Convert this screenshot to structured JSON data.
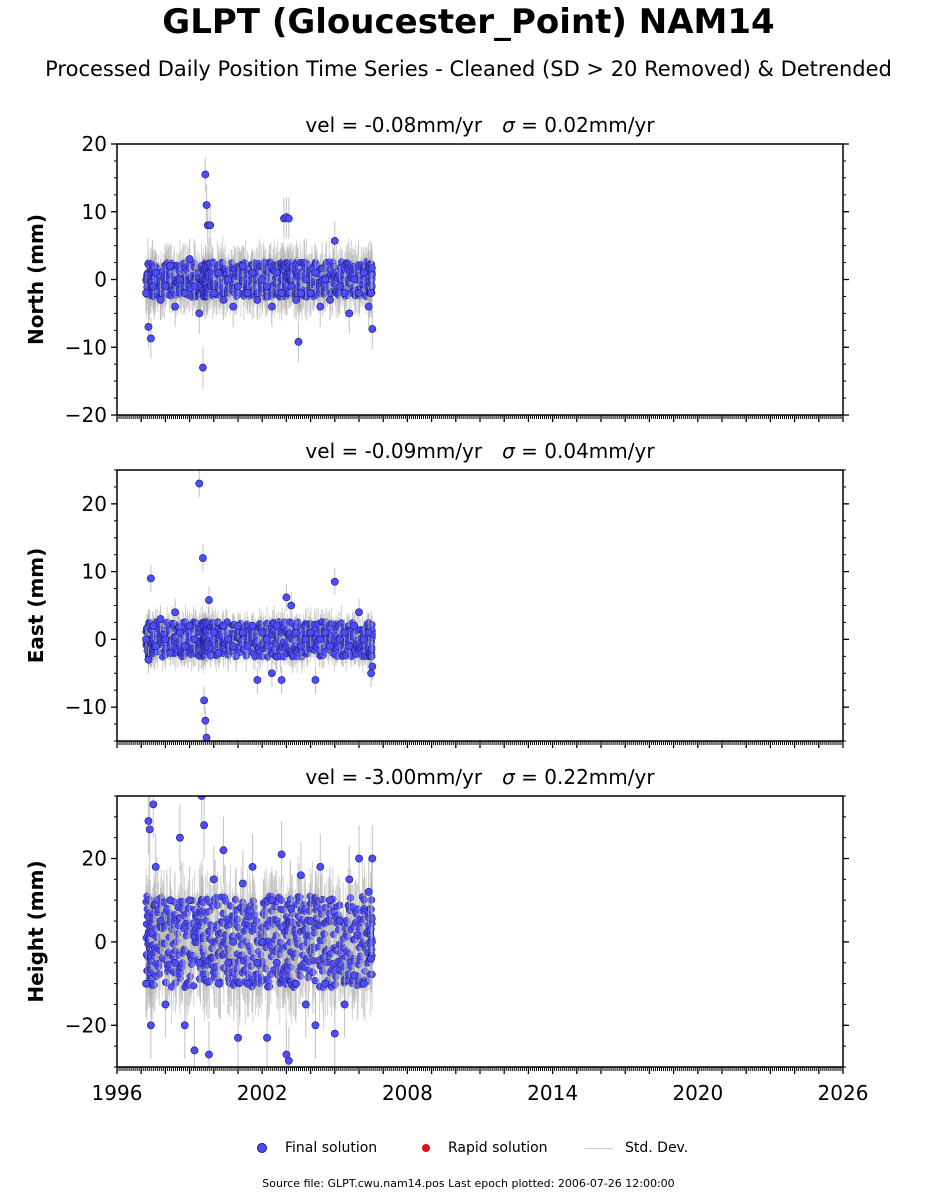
{
  "title": "GLPT (Gloucester_Point) NAM14",
  "subtitle": "Processed Daily Position Time Series - Cleaned (SD > 20 Removed) & Detrended",
  "footer": "Source file: GLPT.cwu.nam14.pos  Last epoch plotted: 2006-07-26 12:00:00",
  "colors": {
    "final": "#4d4dff",
    "final_edge": "#1a1a66",
    "rapid": "#e01010",
    "std": "#b0b0b0"
  },
  "legend": {
    "final": "Final solution",
    "rapid": "Rapid solution",
    "std": "Std. Dev."
  },
  "chart_data": [
    {
      "type": "scatter",
      "panel": "north",
      "annotation_prefix": "vel = -0.08mm/yr",
      "annotation_sigma": "σ",
      "annotation_suffix": " = 0.02mm/yr",
      "ylabel": "North (mm)",
      "xlim": [
        1996,
        2026
      ],
      "ylim": [
        -20,
        20
      ],
      "yticks": [
        -20,
        -10,
        0,
        10,
        20
      ],
      "series": [
        {
          "name": "Final solution",
          "x": [
            1997.2,
            1997.3,
            1997.4,
            1997.5,
            1997.6,
            1997.8,
            1998.0,
            1998.2,
            1998.4,
            1998.6,
            1998.8,
            1999.0,
            1999.2,
            1999.4,
            1999.55,
            1999.65,
            1999.7,
            1999.75,
            1999.85,
            2000.0,
            2000.2,
            2000.4,
            2000.6,
            2000.8,
            2001.0,
            2001.2,
            2001.4,
            2001.6,
            2001.8,
            2002.0,
            2002.2,
            2002.4,
            2002.6,
            2002.8,
            2002.9,
            2003.0,
            2003.1,
            2003.2,
            2003.4,
            2003.5,
            2003.6,
            2003.8,
            2004.0,
            2004.2,
            2004.4,
            2004.6,
            2004.8,
            2005.0,
            2005.2,
            2005.4,
            2005.6,
            2005.8,
            2006.0,
            2006.2,
            2006.4,
            2006.5,
            2006.55
          ],
          "y": [
            -2,
            -7,
            -8.7,
            -1,
            1,
            -3,
            -1,
            2,
            -4,
            0,
            -2,
            3,
            -1,
            -5,
            -13,
            15.5,
            11,
            8,
            8,
            -2,
            1,
            -3,
            0,
            -4,
            -1,
            2,
            -2,
            1,
            -3,
            0,
            -1,
            -4,
            1,
            -2,
            9,
            9.2,
            9,
            -1,
            -3,
            -9.2,
            -2,
            0,
            -2,
            1,
            -4,
            0,
            -3,
            5.7,
            -1,
            -2,
            -5,
            0,
            -2,
            1,
            -4,
            -2,
            -7.3
          ],
          "std": [
            3,
            3,
            3,
            3,
            3,
            3,
            3,
            3,
            3,
            3,
            3,
            3,
            3,
            3,
            3,
            2.5,
            3,
            3,
            3,
            3,
            3,
            3,
            3,
            3,
            3,
            3,
            3,
            3,
            3,
            3,
            3,
            3,
            3,
            3,
            3,
            3,
            3,
            3,
            3,
            3,
            3,
            3,
            3,
            3,
            3,
            3,
            3,
            3,
            3,
            3,
            3,
            3,
            3,
            3,
            3,
            3,
            3
          ]
        },
        {
          "name": "Rapid solution",
          "x": [],
          "y": []
        }
      ]
    },
    {
      "type": "scatter",
      "panel": "east",
      "annotation_prefix": "vel = -0.09mm/yr",
      "annotation_sigma": "σ",
      "annotation_suffix": " = 0.04mm/yr",
      "ylabel": "East (mm)",
      "xlim": [
        1996,
        2026
      ],
      "ylim": [
        -15,
        25
      ],
      "yticks": [
        -10,
        0,
        10,
        20
      ],
      "series": [
        {
          "name": "Final solution",
          "x": [
            1997.2,
            1997.3,
            1997.4,
            1997.5,
            1997.6,
            1997.8,
            1998.0,
            1998.2,
            1998.4,
            1998.6,
            1998.8,
            1999.0,
            1999.2,
            1999.4,
            1999.55,
            1999.6,
            1999.65,
            1999.7,
            1999.8,
            2000.0,
            2000.2,
            2000.4,
            2000.6,
            2000.8,
            2001.0,
            2001.2,
            2001.4,
            2001.6,
            2001.8,
            2002.0,
            2002.2,
            2002.4,
            2002.6,
            2002.8,
            2003.0,
            2003.2,
            2003.4,
            2003.6,
            2003.8,
            2004.0,
            2004.2,
            2004.4,
            2004.6,
            2004.8,
            2005.0,
            2005.2,
            2005.4,
            2005.6,
            2005.8,
            2006.0,
            2006.2,
            2006.4,
            2006.5,
            2006.55
          ],
          "y": [
            0,
            -3,
            9,
            2,
            -1,
            3,
            0,
            -2,
            4,
            1,
            -1,
            2,
            0,
            23,
            12,
            -9,
            -12,
            -14.5,
            5.8,
            1,
            -2,
            2,
            0,
            -1,
            2,
            1,
            -1,
            2,
            -6,
            1,
            0,
            -5,
            2,
            -6,
            6.2,
            5,
            1,
            -1,
            0,
            1,
            -6,
            0,
            1,
            -1,
            8.5,
            0,
            1,
            -1,
            2,
            4,
            0,
            1,
            -5,
            -4
          ],
          "std": [
            2,
            2,
            2,
            2,
            2,
            2,
            2,
            2,
            2,
            2,
            2,
            2,
            2,
            2,
            2,
            2,
            2,
            2,
            2,
            2,
            2,
            2,
            2,
            2,
            2,
            2,
            2,
            2,
            2,
            2,
            2,
            2,
            2,
            2,
            2,
            2,
            2,
            2,
            2,
            2,
            2,
            2,
            2,
            2,
            2,
            2,
            2,
            2,
            2,
            2,
            2,
            2,
            2,
            2
          ]
        },
        {
          "name": "Rapid solution",
          "x": [],
          "y": []
        }
      ]
    },
    {
      "type": "scatter",
      "panel": "height",
      "annotation_prefix": "vel = -3.00mm/yr",
      "annotation_sigma": "σ",
      "annotation_suffix": " = 0.22mm/yr",
      "ylabel": "Height (mm)",
      "xlim": [
        1996,
        2026
      ],
      "ylim": [
        -30,
        35
      ],
      "yticks": [
        -20,
        0,
        20
      ],
      "xticks": [
        1996,
        2002,
        2008,
        2014,
        2020,
        2026
      ],
      "series": [
        {
          "name": "Final solution",
          "x": [
            1997.2,
            1997.3,
            1997.35,
            1997.4,
            1997.5,
            1997.6,
            1997.8,
            1998.0,
            1998.2,
            1998.4,
            1998.6,
            1998.8,
            1999.0,
            1999.2,
            1999.4,
            1999.5,
            1999.6,
            1999.8,
            2000.0,
            2000.2,
            2000.4,
            2000.6,
            2000.8,
            2001.0,
            2001.2,
            2001.4,
            2001.6,
            2001.8,
            2002.0,
            2002.2,
            2002.4,
            2002.6,
            2002.8,
            2003.0,
            2003.1,
            2003.2,
            2003.4,
            2003.6,
            2003.8,
            2004.0,
            2004.2,
            2004.4,
            2004.6,
            2004.8,
            2005.0,
            2005.2,
            2005.4,
            2005.6,
            2005.8,
            2006.0,
            2006.2,
            2006.4,
            2006.5,
            2006.55
          ],
          "y": [
            -10,
            29,
            27,
            -20,
            33,
            18,
            5,
            -15,
            10,
            -5,
            25,
            -20,
            10,
            -26,
            -5,
            35,
            28,
            -27,
            15,
            -10,
            22,
            -5,
            0,
            -23,
            14,
            -10,
            18,
            -5,
            0,
            -23,
            10,
            -5,
            21,
            -27,
            -28.5,
            8,
            -10,
            16,
            -15,
            5,
            -20,
            18,
            -10,
            10,
            -22,
            5,
            -15,
            15,
            -8,
            20,
            -10,
            12,
            -4,
            20
          ],
          "std": [
            8,
            8,
            8,
            8,
            8,
            8,
            8,
            8,
            8,
            8,
            8,
            8,
            8,
            8,
            8,
            8,
            8,
            8,
            8,
            8,
            8,
            8,
            8,
            8,
            8,
            8,
            8,
            8,
            8,
            8,
            8,
            8,
            8,
            8,
            8,
            8,
            8,
            8,
            8,
            8,
            8,
            8,
            8,
            8,
            8,
            8,
            8,
            8,
            8,
            8,
            8,
            8,
            8,
            8
          ]
        },
        {
          "name": "Rapid solution",
          "x": [],
          "y": []
        }
      ]
    }
  ]
}
